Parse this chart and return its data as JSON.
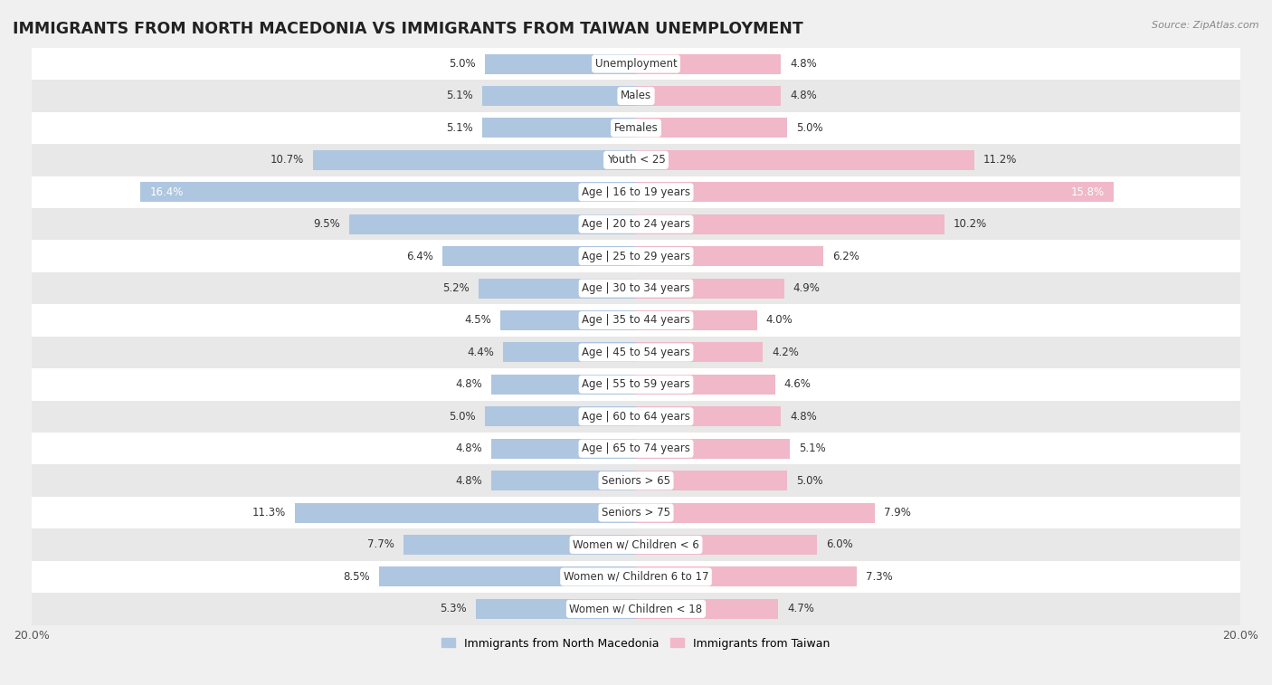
{
  "title": "IMMIGRANTS FROM NORTH MACEDONIA VS IMMIGRANTS FROM TAIWAN UNEMPLOYMENT",
  "source": "Source: ZipAtlas.com",
  "categories": [
    "Unemployment",
    "Males",
    "Females",
    "Youth < 25",
    "Age | 16 to 19 years",
    "Age | 20 to 24 years",
    "Age | 25 to 29 years",
    "Age | 30 to 34 years",
    "Age | 35 to 44 years",
    "Age | 45 to 54 years",
    "Age | 55 to 59 years",
    "Age | 60 to 64 years",
    "Age | 65 to 74 years",
    "Seniors > 65",
    "Seniors > 75",
    "Women w/ Children < 6",
    "Women w/ Children 6 to 17",
    "Women w/ Children < 18"
  ],
  "left_values": [
    5.0,
    5.1,
    5.1,
    10.7,
    16.4,
    9.5,
    6.4,
    5.2,
    4.5,
    4.4,
    4.8,
    5.0,
    4.8,
    4.8,
    11.3,
    7.7,
    8.5,
    5.3
  ],
  "right_values": [
    4.8,
    4.8,
    5.0,
    11.2,
    15.8,
    10.2,
    6.2,
    4.9,
    4.0,
    4.2,
    4.6,
    4.8,
    5.1,
    5.0,
    7.9,
    6.0,
    7.3,
    4.7
  ],
  "left_color": "#aec6e0",
  "right_color": "#f0b8c8",
  "left_label": "Immigrants from North Macedonia",
  "right_label": "Immigrants from Taiwan",
  "xlim": 20.0,
  "bar_height": 0.62,
  "bg_color": "#f0f0f0",
  "row_colors": [
    "#ffffff",
    "#e8e8e8"
  ],
  "title_fontsize": 12.5,
  "label_fontsize": 8.5,
  "value_fontsize": 8.5,
  "axis_label_fontsize": 9,
  "large_val_threshold": 13.0,
  "large_val_white_threshold": 15.0
}
